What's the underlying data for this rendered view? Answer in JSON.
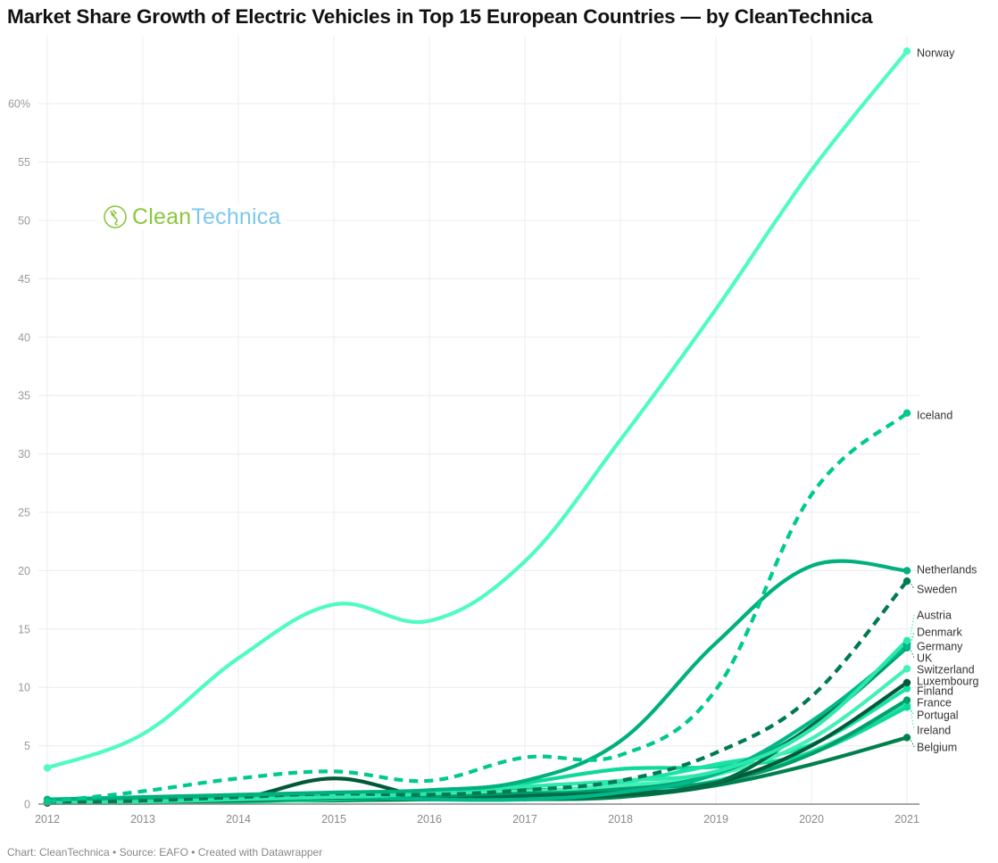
{
  "header": {
    "title": "Market Share Growth of Electric Vehicles in Top 15 European Countries — by CleanTechnica"
  },
  "footer": {
    "credit": "Chart: CleanTechnica • Source: EAFO • Created with Datawrapper"
  },
  "watermark": {
    "icon": "plug-circle-icon",
    "text_part1": "Clean",
    "text_part2": "Technica",
    "color1": "#8cc63f",
    "color2": "#7ec8ea"
  },
  "chart_data": {
    "type": "line",
    "title": "Market Share Growth of Electric Vehicles in Top 15 European Countries — by CleanTechnica",
    "xlabel": "",
    "ylabel": "",
    "x": [
      2012,
      2013,
      2014,
      2015,
      2016,
      2017,
      2018,
      2019,
      2020,
      2021
    ],
    "x_tick_labels": [
      "2012",
      "2013",
      "2014",
      "2015",
      "2016",
      "2017",
      "2018",
      "2019",
      "2020",
      "2021"
    ],
    "y_ticks": [
      0,
      5,
      10,
      15,
      20,
      25,
      30,
      35,
      40,
      45,
      50,
      55,
      60
    ],
    "y_tick_labels": [
      "0",
      "5",
      "10",
      "15",
      "20",
      "25",
      "30",
      "35",
      "40",
      "45",
      "50",
      "55",
      "60%"
    ],
    "ylim": [
      0,
      65
    ],
    "xlim": [
      2012,
      2021
    ],
    "grid": true,
    "legend": "direct-labels-right",
    "series": [
      {
        "name": "Norway",
        "color": "#4ffcc0",
        "dashed": false,
        "values": [
          3.1,
          6.0,
          12.5,
          17.1,
          15.7,
          20.8,
          31.2,
          42.4,
          54.3,
          64.5
        ]
      },
      {
        "name": "Iceland",
        "color": "#00c98e",
        "dashed": true,
        "values": [
          0.2,
          1.1,
          2.2,
          2.8,
          2.0,
          4.0,
          4.2,
          9.8,
          26.5,
          33.5
        ]
      },
      {
        "name": "Netherlands",
        "color": "#00b07e",
        "dashed": false,
        "values": [
          0.4,
          0.6,
          0.8,
          1.0,
          1.2,
          2.0,
          5.4,
          13.8,
          20.4,
          20.0
        ]
      },
      {
        "name": "Sweden",
        "color": "#007a50",
        "dashed": true,
        "values": [
          0.1,
          0.3,
          0.6,
          0.9,
          0.8,
          1.2,
          2.0,
          4.4,
          9.2,
          19.1
        ]
      },
      {
        "name": "Austria",
        "color": "#2de8ad",
        "dashed": false,
        "values": [
          0.1,
          0.2,
          0.4,
          0.6,
          0.9,
          1.5,
          2.0,
          2.8,
          6.4,
          14.0
        ]
      },
      {
        "name": "Denmark",
        "color": "#00b889",
        "dashed": false,
        "values": [
          0.2,
          0.4,
          0.6,
          0.6,
          0.4,
          0.4,
          1.0,
          2.6,
          7.1,
          13.5
        ]
      },
      {
        "name": "Germany",
        "color": "#006b44",
        "dashed": false,
        "values": [
          0.1,
          0.2,
          0.3,
          0.5,
          0.4,
          0.7,
          1.0,
          1.8,
          6.7,
          13.6
        ]
      },
      {
        "name": "UK",
        "color": "#009e6e",
        "dashed": false,
        "values": [
          0.1,
          0.2,
          0.4,
          0.6,
          0.6,
          0.9,
          1.2,
          2.6,
          6.6,
          13.4
        ]
      },
      {
        "name": "Switzerland",
        "color": "#44f0b8",
        "dashed": false,
        "values": [
          0.1,
          0.3,
          0.5,
          0.8,
          0.9,
          1.1,
          1.6,
          2.5,
          5.6,
          11.6
        ]
      },
      {
        "name": "Luxembourg",
        "color": "#005a38",
        "dashed": false,
        "values": [
          0.2,
          0.3,
          0.5,
          2.2,
          0.6,
          0.6,
          0.8,
          1.8,
          5.0,
          10.4
        ]
      },
      {
        "name": "Finland",
        "color": "#19e2a6",
        "dashed": false,
        "values": [
          0.1,
          0.2,
          0.3,
          0.4,
          0.5,
          0.9,
          1.8,
          3.4,
          5.1,
          9.9
        ]
      },
      {
        "name": "France",
        "color": "#00a06b",
        "dashed": false,
        "values": [
          0.2,
          0.4,
          0.5,
          0.9,
          1.1,
          1.2,
          1.4,
          1.9,
          4.3,
          8.9
        ]
      },
      {
        "name": "Portugal",
        "color": "#0fd89b",
        "dashed": false,
        "values": [
          0.1,
          0.2,
          0.2,
          0.4,
          0.7,
          1.8,
          3.0,
          3.2,
          4.4,
          8.3
        ]
      },
      {
        "name": "Ireland",
        "color": "#30e8b0",
        "dashed": false,
        "values": [
          0.1,
          0.1,
          0.3,
          0.5,
          0.5,
          0.5,
          1.0,
          2.0,
          4.5,
          8.5
        ]
      },
      {
        "name": "Belgium",
        "color": "#00804f",
        "dashed": false,
        "values": [
          0.1,
          0.1,
          0.3,
          0.3,
          0.4,
          0.4,
          0.6,
          1.6,
          3.4,
          5.7
        ]
      }
    ],
    "end_labels": [
      {
        "name": "Norway"
      },
      {
        "name": "Iceland"
      },
      {
        "name": "Netherlands"
      },
      {
        "name": "Sweden"
      },
      {
        "name": "Austria"
      },
      {
        "name": "Denmark"
      },
      {
        "name": "Germany"
      },
      {
        "name": "UK"
      },
      {
        "name": "Switzerland"
      },
      {
        "name": "Luxembourg"
      },
      {
        "name": "Finland"
      },
      {
        "name": "France"
      },
      {
        "name": "Portugal"
      },
      {
        "name": "Ireland"
      },
      {
        "name": "Belgium"
      }
    ]
  }
}
